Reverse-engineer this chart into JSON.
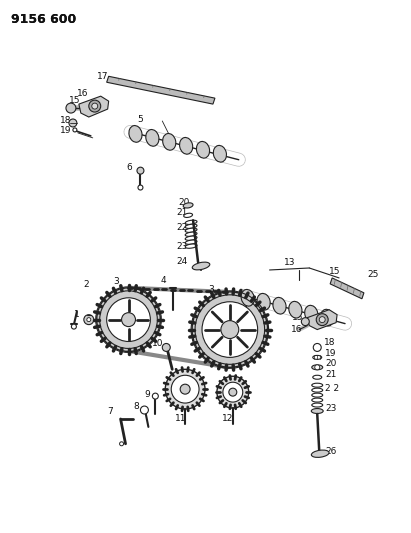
{
  "title": "9156 600",
  "bg_color": "#ffffff",
  "line_color": "#222222",
  "text_color": "#111111",
  "fig_width": 4.11,
  "fig_height": 5.33,
  "dpi": 100
}
